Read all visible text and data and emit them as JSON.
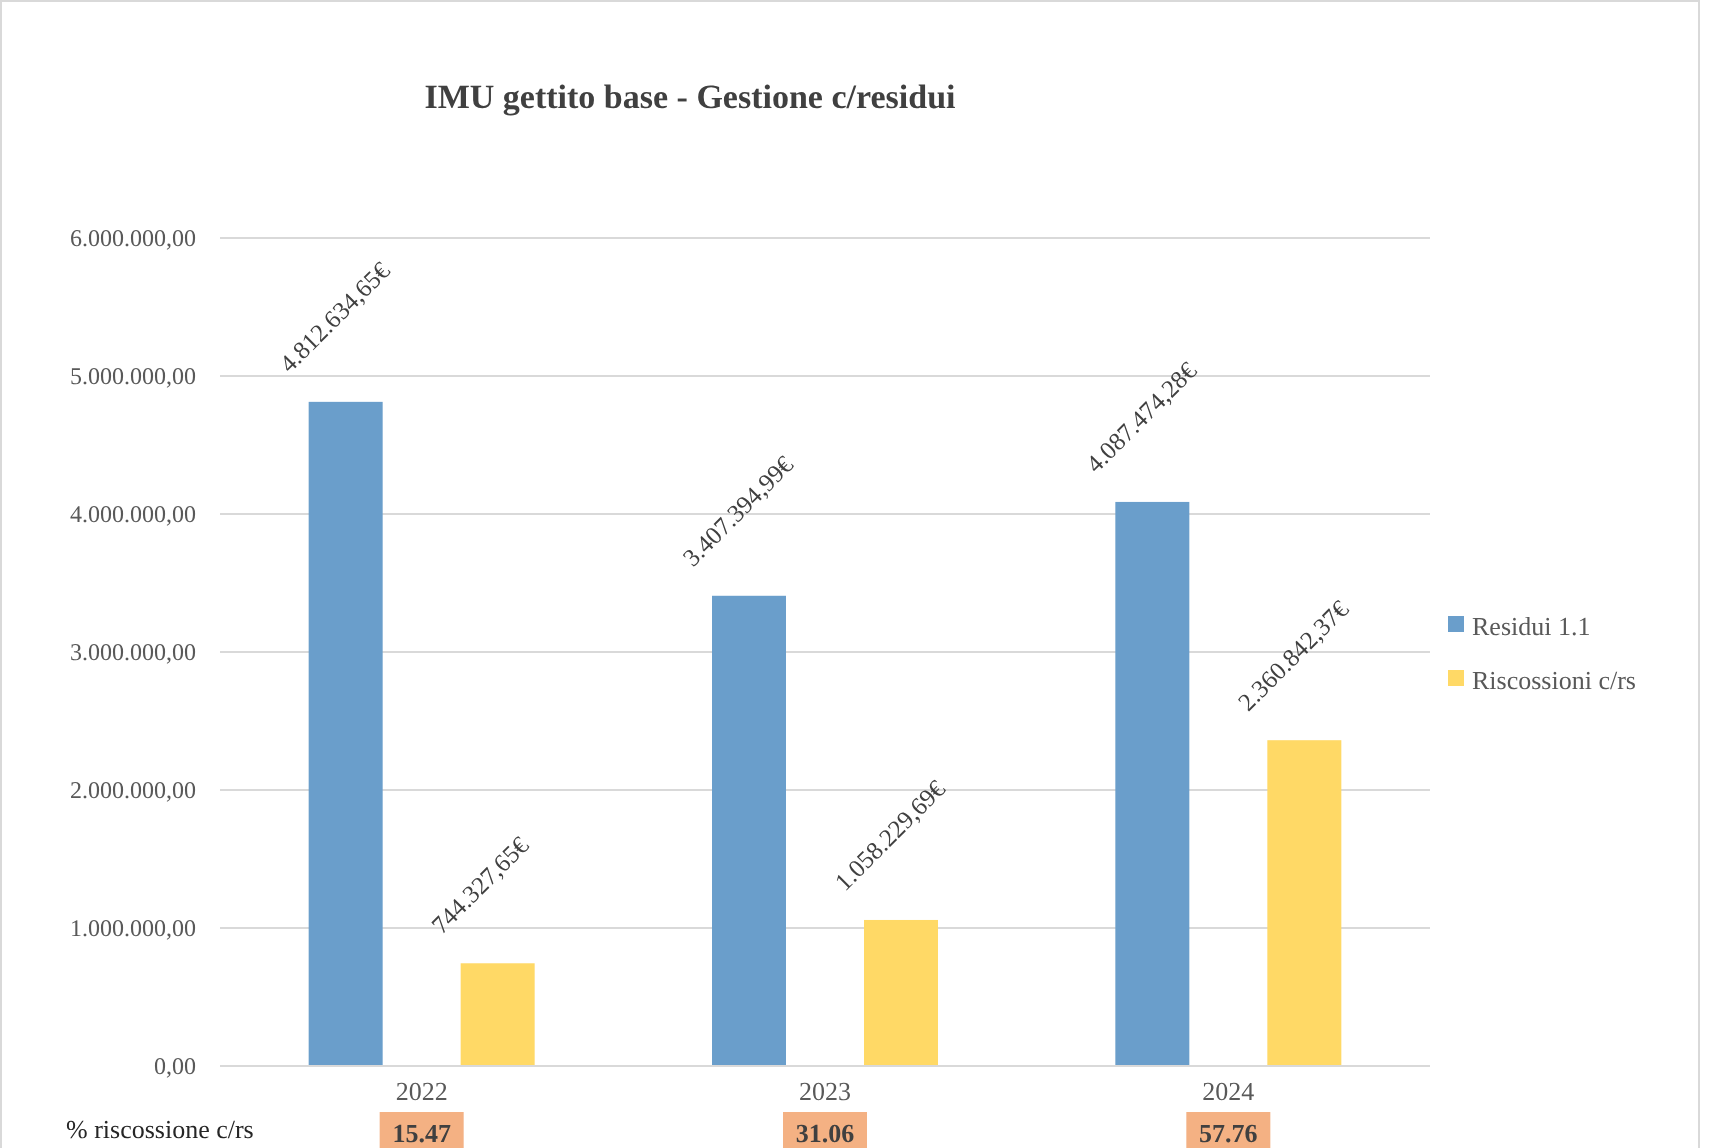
{
  "chart_data": {
    "type": "bar",
    "title": "IMU gettito base - Gestione c/residui",
    "categories": [
      "2022",
      "2023",
      "2024"
    ],
    "series": [
      {
        "name": "Residui 1.1",
        "color": "#6a9ecb",
        "values": [
          4812634.65,
          3407394.99,
          4087474.28
        ],
        "value_labels": [
          "4.812.634,65€",
          "3.407.394,99€",
          "4.087.474,28€"
        ]
      },
      {
        "name": "Riscossioni c/rs",
        "color": "#ffd966",
        "values": [
          744327.65,
          1058229.69,
          2360842.37
        ],
        "value_labels": [
          "744.327,65€",
          "1.058.229,69€",
          "2.360.842,37€"
        ]
      }
    ],
    "ylim": [
      0,
      6000000
    ],
    "yticks": [
      {
        "value": 0,
        "label": "0,00"
      },
      {
        "value": 1000000,
        "label": "1.000.000,00"
      },
      {
        "value": 2000000,
        "label": "2.000.000,00"
      },
      {
        "value": 3000000,
        "label": "3.000.000,00"
      },
      {
        "value": 4000000,
        "label": "4.000.000,00"
      },
      {
        "value": 5000000,
        "label": "5.000.000,00"
      },
      {
        "value": 6000000,
        "label": "6.000.000,00"
      }
    ],
    "grid": "y",
    "legend": "right",
    "annotations": [
      "% riscossione c/rs",
      "15.47",
      "31.06",
      "57.76"
    ]
  }
}
